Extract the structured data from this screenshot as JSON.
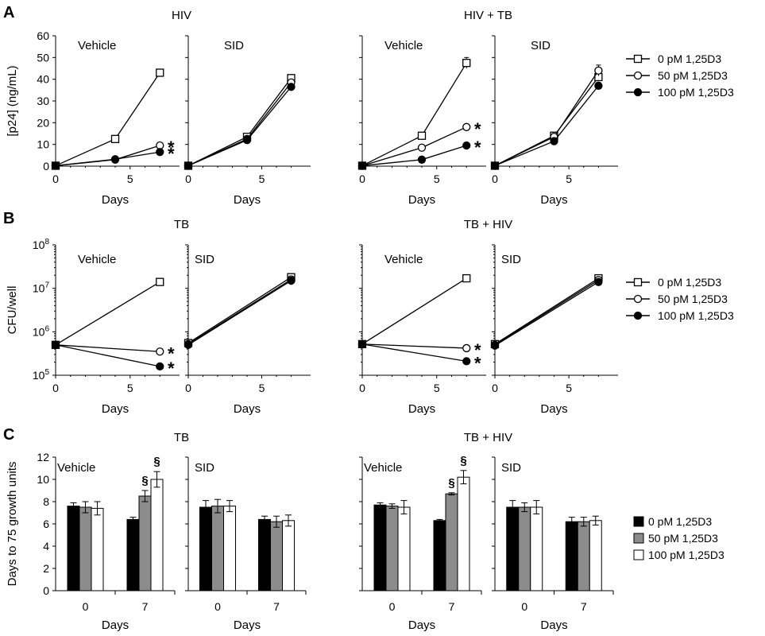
{
  "panels": [
    {
      "letter": "A",
      "label_tail": "HIV",
      "label_sup": "",
      "legend_key": "legend_line"
    },
    {
      "letter": "B",
      "label_tail": "CFU/well",
      "label_sup": "",
      "legend_key": "legend_line"
    },
    {
      "letter": "C",
      "label_tail": "Days to 75 growth units",
      "label_sup": "",
      "legend_key": "legend_bar"
    }
  ],
  "legend_line": [
    "0 pM 1,25D3",
    "50 pM 1,25D3",
    "100 pM 1,25D3"
  ],
  "legend_bar": [
    "0 pM 1,25D3",
    "50 pM 1,25D3",
    "100 pM 1,25D3"
  ],
  "series_style": [
    "open-square",
    "open-circle",
    "filled-circle"
  ],
  "bar_colors": [
    "#000000",
    "#8c8c8c",
    "#ffffff"
  ],
  "chart_data": [
    {
      "type": "line",
      "panel": "A",
      "title": "HIV",
      "subtitle": "Vehicle",
      "xlabel": "Days",
      "ylabel": "[p24] (ng/mL)",
      "xlim": [
        0,
        8
      ],
      "ylim": [
        0,
        60
      ],
      "xticks": [
        0,
        5
      ],
      "yticks": [
        0,
        10,
        20,
        30,
        40,
        50,
        60
      ],
      "x": [
        0,
        4,
        7
      ],
      "series": [
        {
          "name": "0 pM 1,25D3",
          "values": [
            0.2,
            12.5,
            43.0
          ],
          "err": [
            0.3,
            0.8,
            1.5
          ]
        },
        {
          "name": "50 pM 1,25D3",
          "values": [
            0.2,
            3.0,
            9.5
          ],
          "err": [
            0.2,
            0.4,
            0.6
          ],
          "sig": "*"
        },
        {
          "name": "100 pM 1,25D3",
          "values": [
            0.2,
            3.2,
            6.5
          ],
          "err": [
            0.2,
            0.4,
            0.5
          ],
          "sig": "*"
        }
      ]
    },
    {
      "type": "line",
      "panel": "A",
      "title": "",
      "subtitle": "SID",
      "xlabel": "Days",
      "xlim": [
        0,
        8
      ],
      "ylim": [
        0,
        60
      ],
      "xticks": [
        0,
        5
      ],
      "x": [
        0,
        4,
        7
      ],
      "series": [
        {
          "name": "0 pM 1,25D3",
          "values": [
            0.2,
            13.5,
            40.5
          ],
          "err": [
            0.3,
            0.7,
            1.2
          ]
        },
        {
          "name": "50 pM 1,25D3",
          "values": [
            0.2,
            12.5,
            38.5
          ],
          "err": [
            0.3,
            0.7,
            1.2
          ]
        },
        {
          "name": "100 pM 1,25D3",
          "values": [
            0.2,
            12.0,
            36.5
          ],
          "err": [
            0.3,
            0.7,
            1.2
          ]
        }
      ]
    },
    {
      "type": "line",
      "panel": "A",
      "title": "HIV + TB",
      "subtitle": "Vehicle",
      "xlabel": "Days",
      "xlim": [
        0,
        8
      ],
      "ylim": [
        0,
        60
      ],
      "xticks": [
        0,
        5
      ],
      "x": [
        0,
        4,
        7
      ],
      "series": [
        {
          "name": "0 pM 1,25D3",
          "values": [
            0.2,
            14.0,
            47.5
          ],
          "err": [
            0.3,
            0.8,
            2.5
          ]
        },
        {
          "name": "50 pM 1,25D3",
          "values": [
            0.2,
            8.5,
            18.0
          ],
          "err": [
            0.2,
            0.5,
            0.8
          ],
          "sig": "*"
        },
        {
          "name": "100 pM 1,25D3",
          "values": [
            0.2,
            3.0,
            9.5
          ],
          "err": [
            0.2,
            0.3,
            0.6
          ],
          "sig": "*"
        }
      ]
    },
    {
      "type": "line",
      "panel": "A",
      "title": "",
      "subtitle": "SID",
      "xlabel": "Days",
      "xlim": [
        0,
        8
      ],
      "ylim": [
        0,
        60
      ],
      "xticks": [
        0,
        5
      ],
      "x": [
        0,
        4,
        7
      ],
      "series": [
        {
          "name": "0 pM 1,25D3",
          "values": [
            0.2,
            14.0,
            41.0
          ],
          "err": [
            0.3,
            0.8,
            2.0
          ]
        },
        {
          "name": "50 pM 1,25D3",
          "values": [
            0.2,
            13.5,
            44.0
          ],
          "err": [
            0.3,
            0.8,
            2.5
          ]
        },
        {
          "name": "100 pM 1,25D3",
          "values": [
            0.2,
            11.5,
            37.0
          ],
          "err": [
            0.3,
            0.7,
            1.5
          ]
        }
      ]
    },
    {
      "type": "line",
      "panel": "B",
      "title": "TB",
      "subtitle": "Vehicle",
      "xlabel": "Days",
      "ylabel": "CFU/well",
      "xlim": [
        0,
        8
      ],
      "ylim": [
        100000,
        100000000
      ],
      "yscale": "log",
      "xticks": [
        0,
        5
      ],
      "yticks": [
        "10^5",
        "10^6",
        "10^7",
        "10^8"
      ],
      "x": [
        0,
        7
      ],
      "series": [
        {
          "name": "0 pM 1,25D3",
          "values": [
            500000,
            14000000
          ]
        },
        {
          "name": "50 pM 1,25D3",
          "values": [
            500000,
            350000
          ],
          "sig": "*"
        },
        {
          "name": "100 pM 1,25D3",
          "values": [
            500000,
            160000
          ],
          "sig": "*"
        }
      ]
    },
    {
      "type": "line",
      "panel": "B",
      "title": "",
      "subtitle": "SID",
      "xlabel": "Days",
      "xlim": [
        0,
        8
      ],
      "ylim": [
        100000,
        100000000
      ],
      "yscale": "log",
      "xticks": [
        0,
        5
      ],
      "x": [
        0,
        7
      ],
      "series": [
        {
          "name": "0 pM 1,25D3",
          "values": [
            550000,
            18000000
          ]
        },
        {
          "name": "50 pM 1,25D3",
          "values": [
            520000,
            16000000
          ]
        },
        {
          "name": "100 pM 1,25D3",
          "values": [
            500000,
            15000000
          ]
        }
      ]
    },
    {
      "type": "line",
      "panel": "B",
      "title": "TB + HIV",
      "subtitle": "Vehicle",
      "xlabel": "Days",
      "xlim": [
        0,
        8
      ],
      "ylim": [
        100000,
        100000000
      ],
      "yscale": "log",
      "xticks": [
        0,
        5
      ],
      "x": [
        0,
        7
      ],
      "series": [
        {
          "name": "0 pM 1,25D3",
          "values": [
            520000,
            17000000
          ]
        },
        {
          "name": "50 pM 1,25D3",
          "values": [
            520000,
            420000
          ],
          "sig": "*"
        },
        {
          "name": "100 pM 1,25D3",
          "values": [
            520000,
            210000
          ],
          "sig": "*"
        }
      ]
    },
    {
      "type": "line",
      "panel": "B",
      "title": "",
      "subtitle": "SID",
      "xlabel": "Days",
      "xlim": [
        0,
        8
      ],
      "ylim": [
        100000,
        100000000
      ],
      "yscale": "log",
      "xticks": [
        0,
        5
      ],
      "x": [
        0,
        7
      ],
      "series": [
        {
          "name": "0 pM 1,25D3",
          "values": [
            520000,
            17000000
          ]
        },
        {
          "name": "50 pM 1,25D3",
          "values": [
            500000,
            15500000
          ]
        },
        {
          "name": "100 pM 1,25D3",
          "values": [
            480000,
            14000000
          ]
        }
      ]
    },
    {
      "type": "bar",
      "panel": "C",
      "title": "TB",
      "subtitle": "Vehicle",
      "xlabel": "Days",
      "ylabel": "Days to 75 growth units",
      "ylim": [
        0,
        12
      ],
      "yticks": [
        0,
        2,
        4,
        6,
        8,
        10,
        12
      ],
      "categories": [
        "0",
        "7"
      ],
      "series": [
        {
          "name": "0 pM 1,25D3",
          "values": [
            7.6,
            6.4
          ],
          "err": [
            0.3,
            0.2
          ]
        },
        {
          "name": "50 pM 1,25D3",
          "values": [
            7.5,
            8.5
          ],
          "err": [
            0.5,
            0.5
          ],
          "sig": [
            "",
            "§"
          ]
        },
        {
          "name": "100 pM 1,25D3",
          "values": [
            7.4,
            10.0
          ],
          "err": [
            0.6,
            0.7
          ],
          "sig": [
            "",
            "§"
          ]
        }
      ]
    },
    {
      "type": "bar",
      "panel": "C",
      "title": "",
      "subtitle": "SID",
      "xlabel": "Days",
      "ylim": [
        0,
        12
      ],
      "categories": [
        "0",
        "7"
      ],
      "series": [
        {
          "name": "0 pM 1,25D3",
          "values": [
            7.5,
            6.4
          ],
          "err": [
            0.6,
            0.3
          ]
        },
        {
          "name": "50 pM 1,25D3",
          "values": [
            7.6,
            6.2
          ],
          "err": [
            0.6,
            0.5
          ]
        },
        {
          "name": "100 pM 1,25D3",
          "values": [
            7.6,
            6.3
          ],
          "err": [
            0.5,
            0.5
          ]
        }
      ]
    },
    {
      "type": "bar",
      "panel": "C",
      "title": "TB + HIV",
      "subtitle": "Vehicle",
      "xlabel": "Days",
      "ylim": [
        0,
        12
      ],
      "categories": [
        "0",
        "7"
      ],
      "series": [
        {
          "name": "0 pM 1,25D3",
          "values": [
            7.7,
            6.3
          ],
          "err": [
            0.2,
            0.1
          ]
        },
        {
          "name": "50 pM 1,25D3",
          "values": [
            7.6,
            8.7
          ],
          "err": [
            0.2,
            0.1
          ],
          "sig": [
            "",
            "§"
          ]
        },
        {
          "name": "100 pM 1,25D3",
          "values": [
            7.5,
            10.2
          ],
          "err": [
            0.6,
            0.6
          ],
          "sig": [
            "",
            "§"
          ]
        }
      ]
    },
    {
      "type": "bar",
      "panel": "C",
      "title": "",
      "subtitle": "SID",
      "xlabel": "Days",
      "ylim": [
        0,
        12
      ],
      "categories": [
        "0",
        "7"
      ],
      "series": [
        {
          "name": "0 pM 1,25D3",
          "values": [
            7.5,
            6.2
          ],
          "err": [
            0.6,
            0.4
          ]
        },
        {
          "name": "50 pM 1,25D3",
          "values": [
            7.5,
            6.2
          ],
          "err": [
            0.4,
            0.4
          ]
        },
        {
          "name": "100 pM 1,25D3",
          "values": [
            7.5,
            6.3
          ],
          "err": [
            0.6,
            0.4
          ]
        }
      ]
    }
  ]
}
